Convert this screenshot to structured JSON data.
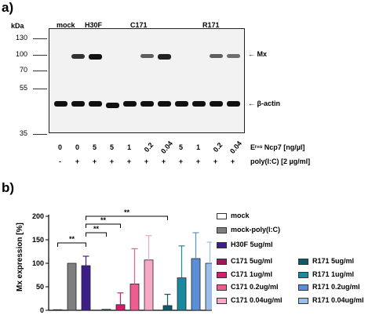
{
  "panel_a": {
    "label": "a)",
    "kda_label": "kDa",
    "ladder": [
      "130",
      "100",
      "70",
      "55",
      "35"
    ],
    "groups": [
      "mock",
      "H30F",
      "C171",
      "R171"
    ],
    "mx_label": "← Mx",
    "actin_label": "← β-actin",
    "e_row": [
      "0",
      "0",
      "5",
      "5",
      "1",
      "0.2",
      "0.04",
      "5",
      "1",
      "0.2",
      "0.04"
    ],
    "e_label": "Eʳⁿˢ Ncp7 [ng/µl]",
    "poly_row": [
      "-",
      "+",
      "+",
      "+",
      "+",
      "+",
      "+",
      "+",
      "+",
      "+",
      "+"
    ],
    "poly_label": "poly(I:C) [2 µg/ml]",
    "mx_intensity": [
      0,
      0.8,
      1.0,
      0,
      0,
      0.55,
      0.9,
      0,
      0,
      0.55,
      0.45
    ]
  },
  "panel_b": {
    "label": "b)",
    "significance": [
      "**",
      "**",
      "**",
      "**"
    ],
    "legend": [
      {
        "label": "mock",
        "color": "#ffffff"
      },
      {
        "label": "mock-poly(I:C)",
        "color": "#7f7f7f"
      },
      {
        "label": "H30F 5ug/ml",
        "color": "#3d1f8a"
      },
      {
        "label": "C171 5ug/ml",
        "color": "#a0185a"
      },
      {
        "label": "C171 1ug/ml",
        "color": "#d81b6a"
      },
      {
        "label": "C171 0.2ug/ml",
        "color": "#ee5c90"
      },
      {
        "label": "C171 0.04ug/ml",
        "color": "#f7a8c6"
      },
      {
        "label": "R171 5ug/ml",
        "color": "#0e5a6b"
      },
      {
        "label": "R171 1ug/ml",
        "color": "#1b8a9e"
      },
      {
        "label": "R171 0.2ug/ml",
        "color": "#5a8fd6"
      },
      {
        "label": "R171 0.04ug/ml",
        "color": "#9bbfe6"
      }
    ]
  },
  "chart_data": {
    "type": "bar",
    "ylabel": "Mx expression [%]",
    "ylim": [
      0,
      200
    ],
    "yticks": [
      "0",
      "50",
      "100",
      "150",
      "200"
    ],
    "categories": [
      "mock",
      "mock-poly(I:C)",
      "H30F 5ug/ml",
      "C171 5ug/ml",
      "C171 1ug/ml",
      "C171 0.2ug/ml",
      "C171 0.04ug/ml",
      "R171 5ug/ml",
      "R171 1ug/ml",
      "R171 0.2ug/ml",
      "R171 0.04ug/ml"
    ],
    "values": [
      0,
      100,
      95,
      2,
      12,
      56,
      107,
      10,
      69,
      110,
      100
    ],
    "errors": [
      0,
      0,
      20,
      0,
      25,
      75,
      52,
      24,
      68,
      55,
      45
    ],
    "colors": [
      "#ffffff",
      "#7f7f7f",
      "#3d1f8a",
      "#a0185a",
      "#d81b6a",
      "#ee5c90",
      "#f7a8c6",
      "#0e5a6b",
      "#1b8a9e",
      "#5a8fd6",
      "#9bbfe6"
    ],
    "grid": false
  }
}
